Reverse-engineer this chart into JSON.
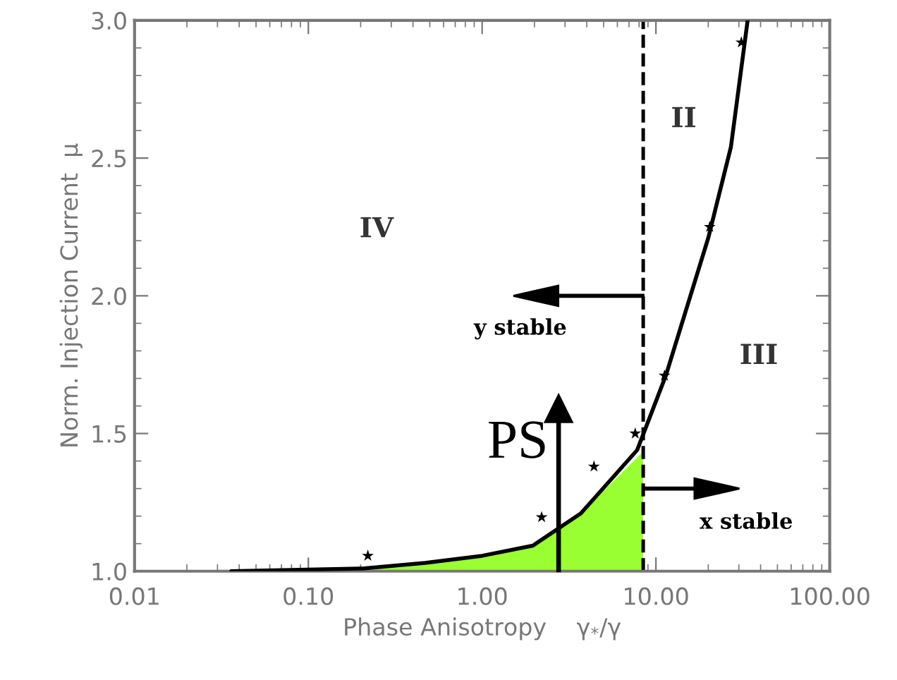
{
  "chart_data": {
    "type": "line",
    "xlabel": "Phase Anisotropy    γ$_{*}$/γ",
    "ylabel": "Norm. Injection Current  μ",
    "log": "x",
    "xlim": [
      0.01,
      100
    ],
    "xticks": [
      {
        "value": 0.01,
        "label": "0.01"
      },
      {
        "value": 0.1,
        "label": "0.10"
      },
      {
        "value": 1,
        "label": "1.00"
      },
      {
        "value": 10,
        "label": "10.00"
      },
      {
        "value": 100,
        "label": "100.00"
      }
    ],
    "ylim": [
      1.0,
      3.0
    ],
    "yticks": [
      {
        "value": 1.0,
        "label": "1.0"
      },
      {
        "value": 1.5,
        "label": "1.5"
      },
      {
        "value": 2.0,
        "label": "2.0"
      },
      {
        "value": 2.5,
        "label": "2.5"
      },
      {
        "value": 3.0,
        "label": "3.0"
      }
    ],
    "series": [
      {
        "type": "area",
        "color": "#99ff33",
        "x": [
          0.15,
          0.21,
          0.47,
          1.0,
          2.0,
          3.7,
          8.45
        ],
        "values": [
          1.0,
          1.01,
          1.03,
          1.056,
          1.093,
          1.21,
          1.434
        ]
      },
      {
        "color": "#000000",
        "marker": "none",
        "line_style": "solid",
        "x": [
          0.036,
          0.21,
          0.47,
          1.0,
          1.96,
          3.7,
          7.8,
          11.4,
          20,
          27,
          33.7
        ],
        "values": [
          1.0,
          1.01,
          1.03,
          1.056,
          1.093,
          1.21,
          1.44,
          1.71,
          2.21,
          2.54,
          3.0
        ]
      },
      {
        "type": "scatter",
        "color": "#000000",
        "marker": "star",
        "x": [
          0.22,
          2.2,
          4.4,
          7.6,
          11.2,
          20.4,
          31
        ],
        "values": [
          1.056,
          1.196,
          1.38,
          1.5,
          1.71,
          2.25,
          2.92
        ]
      }
    ],
    "ref_lines": [
      {
        "axis": "x",
        "value": 8.45,
        "color": "#000000",
        "line_style": "dashed"
      }
    ],
    "annotations": [
      "PS",
      "y stable",
      "x stable",
      "II",
      "III",
      "IV"
    ]
  }
}
